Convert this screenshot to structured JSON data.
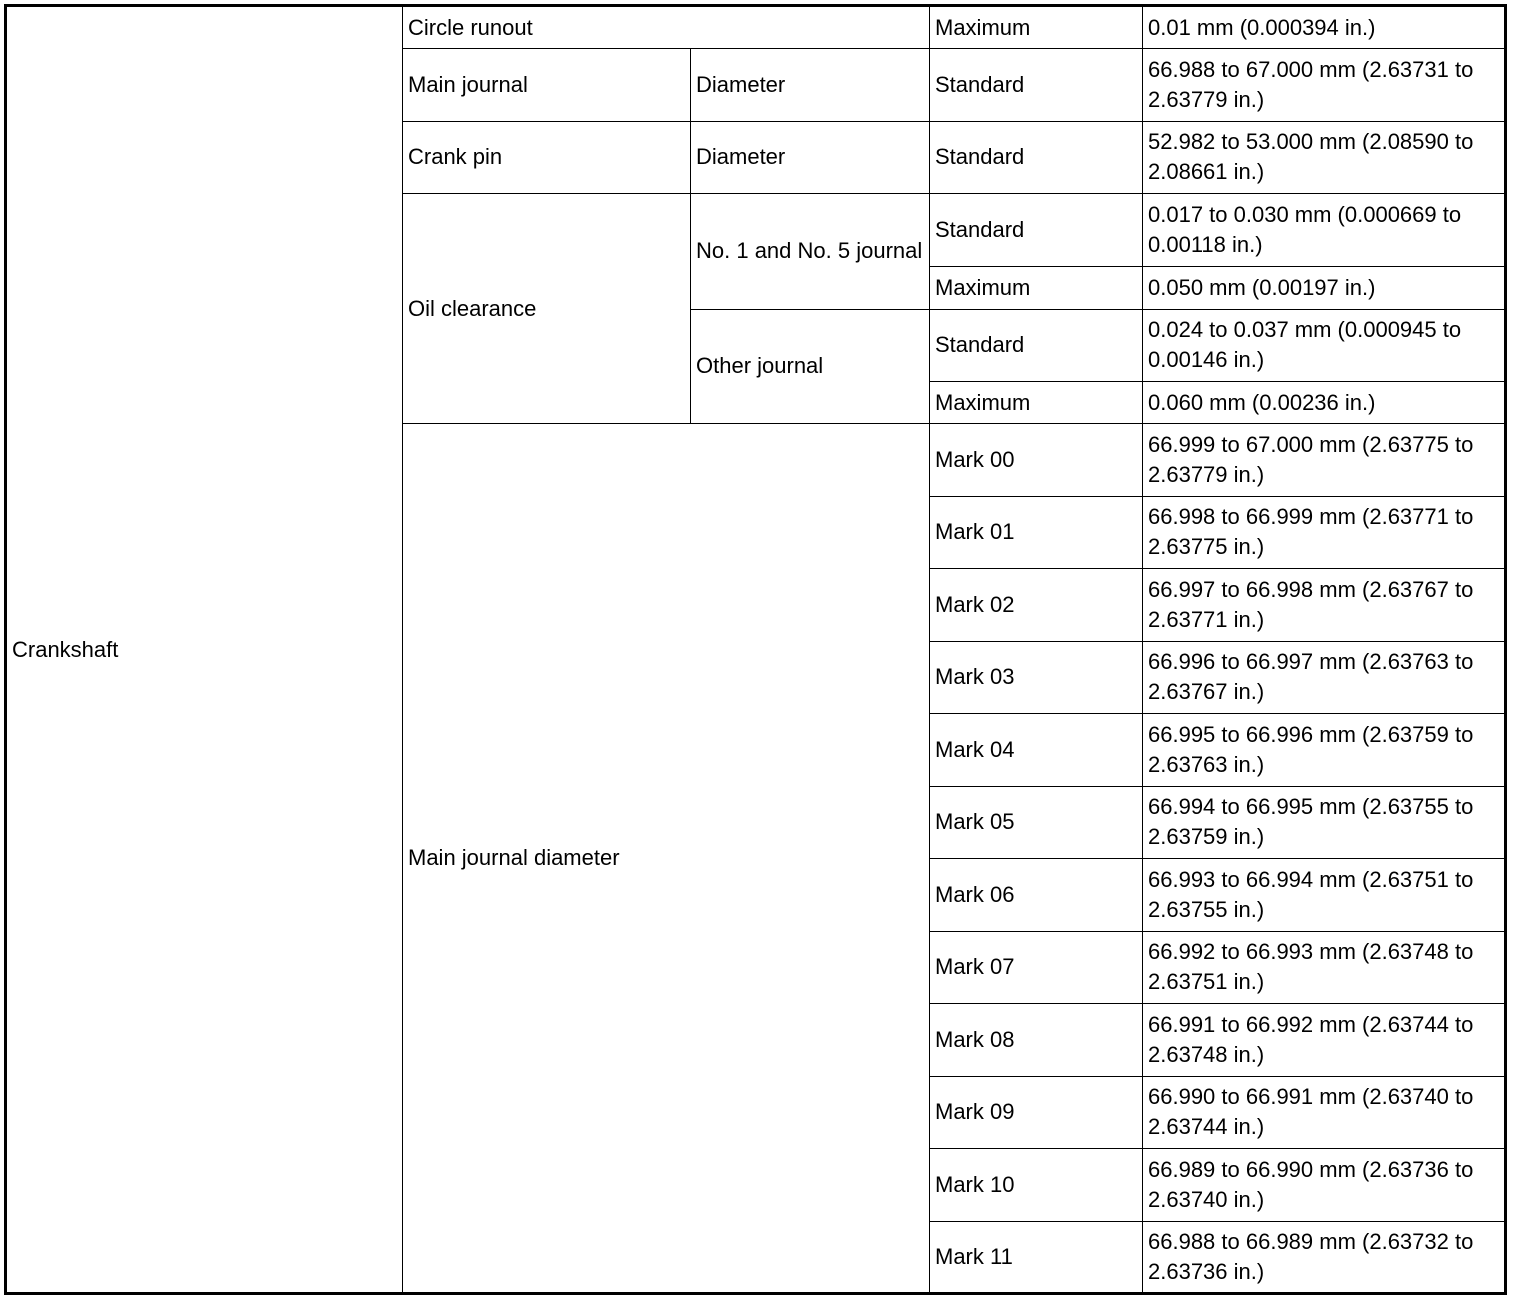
{
  "table": {
    "component": "Crankshaft",
    "circle_runout": {
      "label": "Circle runout",
      "type": "Maximum",
      "value": "0.01 mm (0.000394 in.)"
    },
    "main_journal": {
      "label": "Main journal",
      "sub": "Diameter",
      "type": "Standard",
      "value": "66.988 to 67.000 mm (2.63731 to 2.63779 in.)"
    },
    "crank_pin": {
      "label": "Crank pin",
      "sub": "Diameter",
      "type": "Standard",
      "value": "52.982 to 53.000 mm (2.08590 to 2.08661 in.)"
    },
    "oil_clearance": {
      "label": "Oil clearance",
      "no1_no5": {
        "label": "No. 1 and No. 5 journal",
        "standard_label": "Standard",
        "standard": "0.017 to 0.030 mm (0.000669 to 0.00118 in.)",
        "maximum_label": "Maximum",
        "maximum": "0.050 mm (0.00197 in.)"
      },
      "other": {
        "label": "Other journal",
        "standard_label": "Standard",
        "standard": "0.024 to 0.037 mm (0.000945 to 0.00146 in.)",
        "maximum_label": "Maximum",
        "maximum": "0.060 mm (0.00236 in.)"
      }
    },
    "main_journal_diameter": {
      "label": "Main journal diameter",
      "marks": [
        {
          "mark": "Mark 00",
          "value": "66.999 to 67.000 mm (2.63775 to 2.63779 in.)"
        },
        {
          "mark": "Mark 01",
          "value": "66.998 to 66.999 mm (2.63771 to 2.63775 in.)"
        },
        {
          "mark": "Mark 02",
          "value": "66.997 to 66.998 mm (2.63767 to 2.63771 in.)"
        },
        {
          "mark": "Mark 03",
          "value": "66.996 to 66.997 mm (2.63763 to 2.63767 in.)"
        },
        {
          "mark": "Mark 04",
          "value": "66.995 to 66.996 mm (2.63759 to 2.63763 in.)"
        },
        {
          "mark": "Mark 05",
          "value": "66.994 to 66.995 mm (2.63755 to 2.63759 in.)"
        },
        {
          "mark": "Mark 06",
          "value": "66.993 to 66.994 mm (2.63751 to 2.63755 in.)"
        },
        {
          "mark": "Mark 07",
          "value": "66.992 to 66.993 mm (2.63748 to 2.63751 in.)"
        },
        {
          "mark": "Mark 08",
          "value": "66.991 to 66.992 mm (2.63744 to 2.63748 in.)"
        },
        {
          "mark": "Mark 09",
          "value": "66.990 to 66.991 mm (2.63740 to 2.63744 in.)"
        },
        {
          "mark": "Mark 10",
          "value": "66.989 to 66.990 mm (2.63736 to 2.63740 in.)"
        },
        {
          "mark": "Mark 11",
          "value": "66.988 to 66.989 mm (2.63732 to 2.63736 in.)"
        }
      ]
    }
  }
}
